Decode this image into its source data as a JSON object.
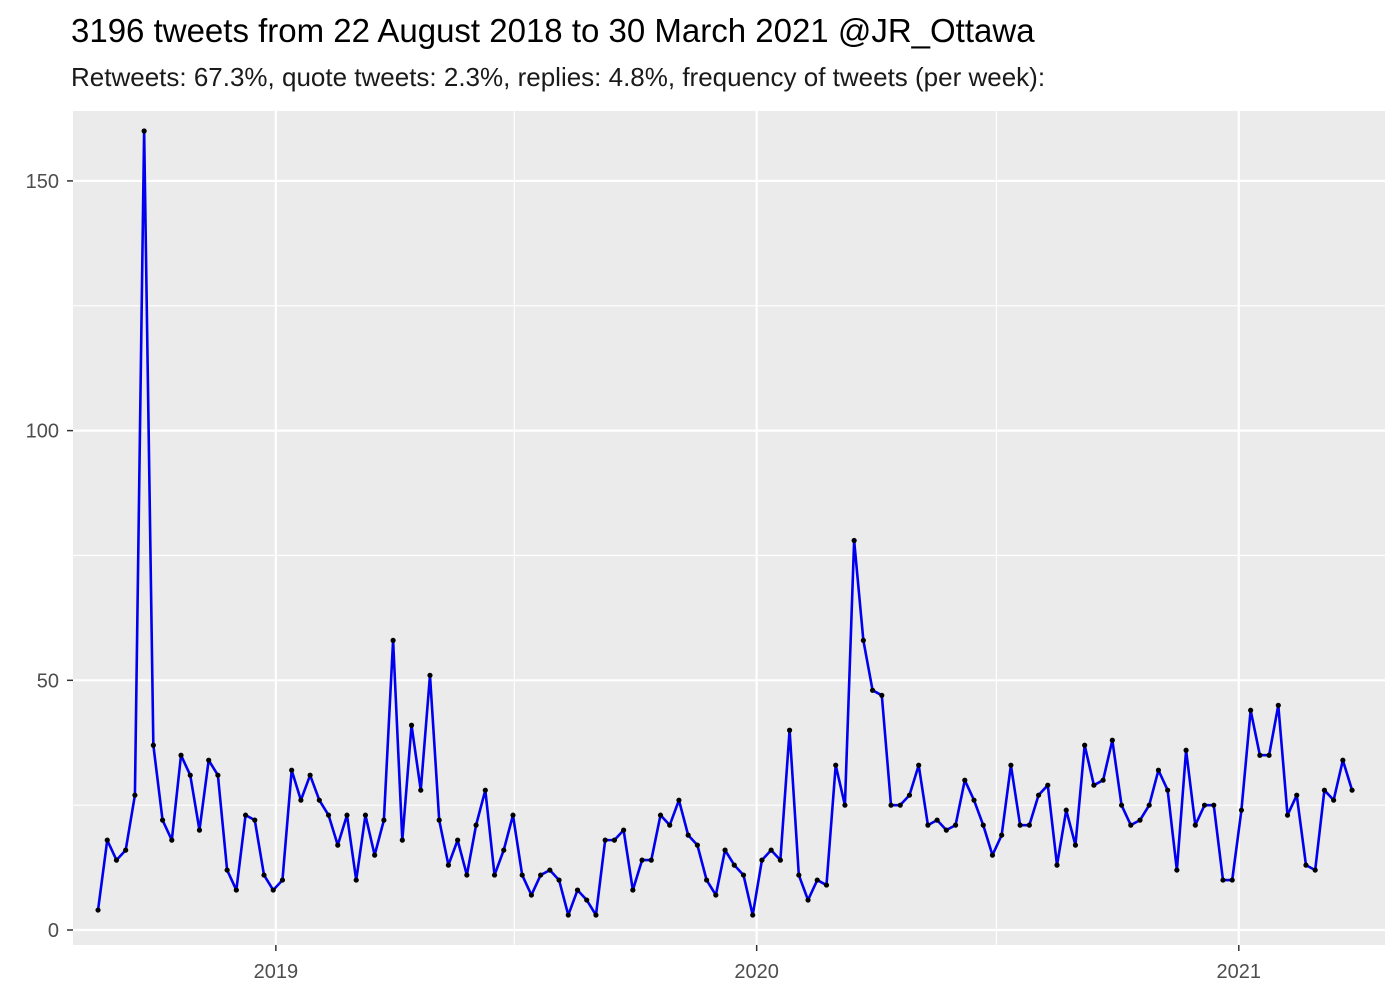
{
  "title": "3196 tweets from 22 August 2018 to 30 March 2021 @JR_Ottawa",
  "subtitle": "Retweets: 67.3%, quote tweets: 2.3%, replies: 4.8%, frequency of tweets (per week):",
  "colors": {
    "panel_background": "#ebebeb",
    "grid": "#ffffff",
    "line": "#0000ee",
    "points": "#000000"
  },
  "chart_data": {
    "type": "line",
    "title": "3196 tweets from 22 August 2018 to 30 March 2021 @JR_Ottawa",
    "subtitle": "Retweets: 67.3%, quote tweets: 2.3%, replies: 4.8%, frequency of tweets (per week):",
    "xlabel": "",
    "ylabel": "",
    "grid": true,
    "legend": "none",
    "x_ticks": [
      "2019",
      "2020",
      "2021"
    ],
    "y_ticks": [
      "0",
      "50",
      "100",
      "150"
    ],
    "ylim": [
      -3,
      164
    ],
    "xlim": [
      "2018-07-31",
      "2021-04-22"
    ],
    "series": [
      {
        "x": [
          "2018-08-19",
          "2018-08-26",
          "2018-09-02",
          "2018-09-09",
          "2018-09-16",
          "2018-09-23",
          "2018-09-30",
          "2018-10-07",
          "2018-10-14",
          "2018-10-21",
          "2018-10-28",
          "2018-11-04",
          "2018-11-11",
          "2018-11-18",
          "2018-11-25",
          "2018-12-02",
          "2018-12-09",
          "2018-12-16",
          "2018-12-23",
          "2018-12-30",
          "2019-01-06",
          "2019-01-13",
          "2019-01-20",
          "2019-01-27",
          "2019-02-03",
          "2019-02-10",
          "2019-02-17",
          "2019-02-24",
          "2019-03-03",
          "2019-03-10",
          "2019-03-17",
          "2019-03-24",
          "2019-03-31",
          "2019-04-07",
          "2019-04-14",
          "2019-04-21",
          "2019-04-28",
          "2019-05-05",
          "2019-05-12",
          "2019-05-19",
          "2019-05-26",
          "2019-06-02",
          "2019-06-09",
          "2019-06-16",
          "2019-06-23",
          "2019-06-30",
          "2019-07-07",
          "2019-07-14",
          "2019-07-21",
          "2019-07-28",
          "2019-08-04",
          "2019-08-11",
          "2019-08-18",
          "2019-08-25",
          "2019-09-01",
          "2019-09-08",
          "2019-09-15",
          "2019-09-22",
          "2019-09-29",
          "2019-10-06",
          "2019-10-13",
          "2019-10-20",
          "2019-10-27",
          "2019-11-03",
          "2019-11-10",
          "2019-11-17",
          "2019-11-24",
          "2019-12-01",
          "2019-12-08",
          "2019-12-15",
          "2019-12-22",
          "2019-12-29",
          "2020-01-05",
          "2020-01-12",
          "2020-01-19",
          "2020-01-26",
          "2020-02-02",
          "2020-02-09",
          "2020-02-16",
          "2020-02-23",
          "2020-03-01",
          "2020-03-08",
          "2020-03-15",
          "2020-03-22",
          "2020-03-29",
          "2020-04-05",
          "2020-04-12",
          "2020-04-19",
          "2020-04-26",
          "2020-05-03",
          "2020-05-10",
          "2020-05-17",
          "2020-05-24",
          "2020-05-31",
          "2020-06-07",
          "2020-06-14",
          "2020-06-21",
          "2020-06-28",
          "2020-07-05",
          "2020-07-12",
          "2020-07-19",
          "2020-07-26",
          "2020-08-02",
          "2020-08-09",
          "2020-08-16",
          "2020-08-23",
          "2020-08-30",
          "2020-09-06",
          "2020-09-13",
          "2020-09-20",
          "2020-09-27",
          "2020-10-04",
          "2020-10-11",
          "2020-10-18",
          "2020-10-25",
          "2020-11-01",
          "2020-11-08",
          "2020-11-15",
          "2020-11-22",
          "2020-11-29",
          "2020-12-06",
          "2020-12-13",
          "2020-12-20",
          "2020-12-27",
          "2021-01-03",
          "2021-01-10",
          "2021-01-17",
          "2021-01-24",
          "2021-01-31",
          "2021-02-07",
          "2021-02-14",
          "2021-02-21",
          "2021-02-28",
          "2021-03-07",
          "2021-03-14",
          "2021-03-21",
          "2021-03-28"
        ],
        "y": [
          4,
          18,
          14,
          16,
          27,
          160,
          37,
          22,
          18,
          35,
          31,
          20,
          34,
          31,
          12,
          8,
          23,
          22,
          11,
          8,
          10,
          32,
          26,
          31,
          26,
          23,
          17,
          23,
          10,
          23,
          15,
          22,
          58,
          18,
          41,
          28,
          51,
          22,
          13,
          18,
          11,
          21,
          28,
          11,
          16,
          23,
          11,
          7,
          11,
          12,
          10,
          3,
          8,
          6,
          3,
          18,
          18,
          20,
          8,
          14,
          14,
          23,
          21,
          26,
          19,
          17,
          10,
          7,
          16,
          13,
          11,
          3,
          14,
          16,
          14,
          40,
          11,
          6,
          10,
          9,
          33,
          25,
          78,
          58,
          48,
          47,
          25,
          25,
          27,
          33,
          21,
          22,
          20,
          21,
          30,
          26,
          21,
          15,
          19,
          33,
          21,
          21,
          27,
          29,
          13,
          24,
          17,
          37,
          29,
          30,
          38,
          25,
          21,
          22,
          25,
          32,
          28,
          12,
          36,
          21,
          25,
          25,
          10,
          10,
          24,
          44,
          35,
          35,
          45,
          23,
          27,
          13,
          12,
          28,
          26,
          34,
          28
        ]
      }
    ]
  }
}
